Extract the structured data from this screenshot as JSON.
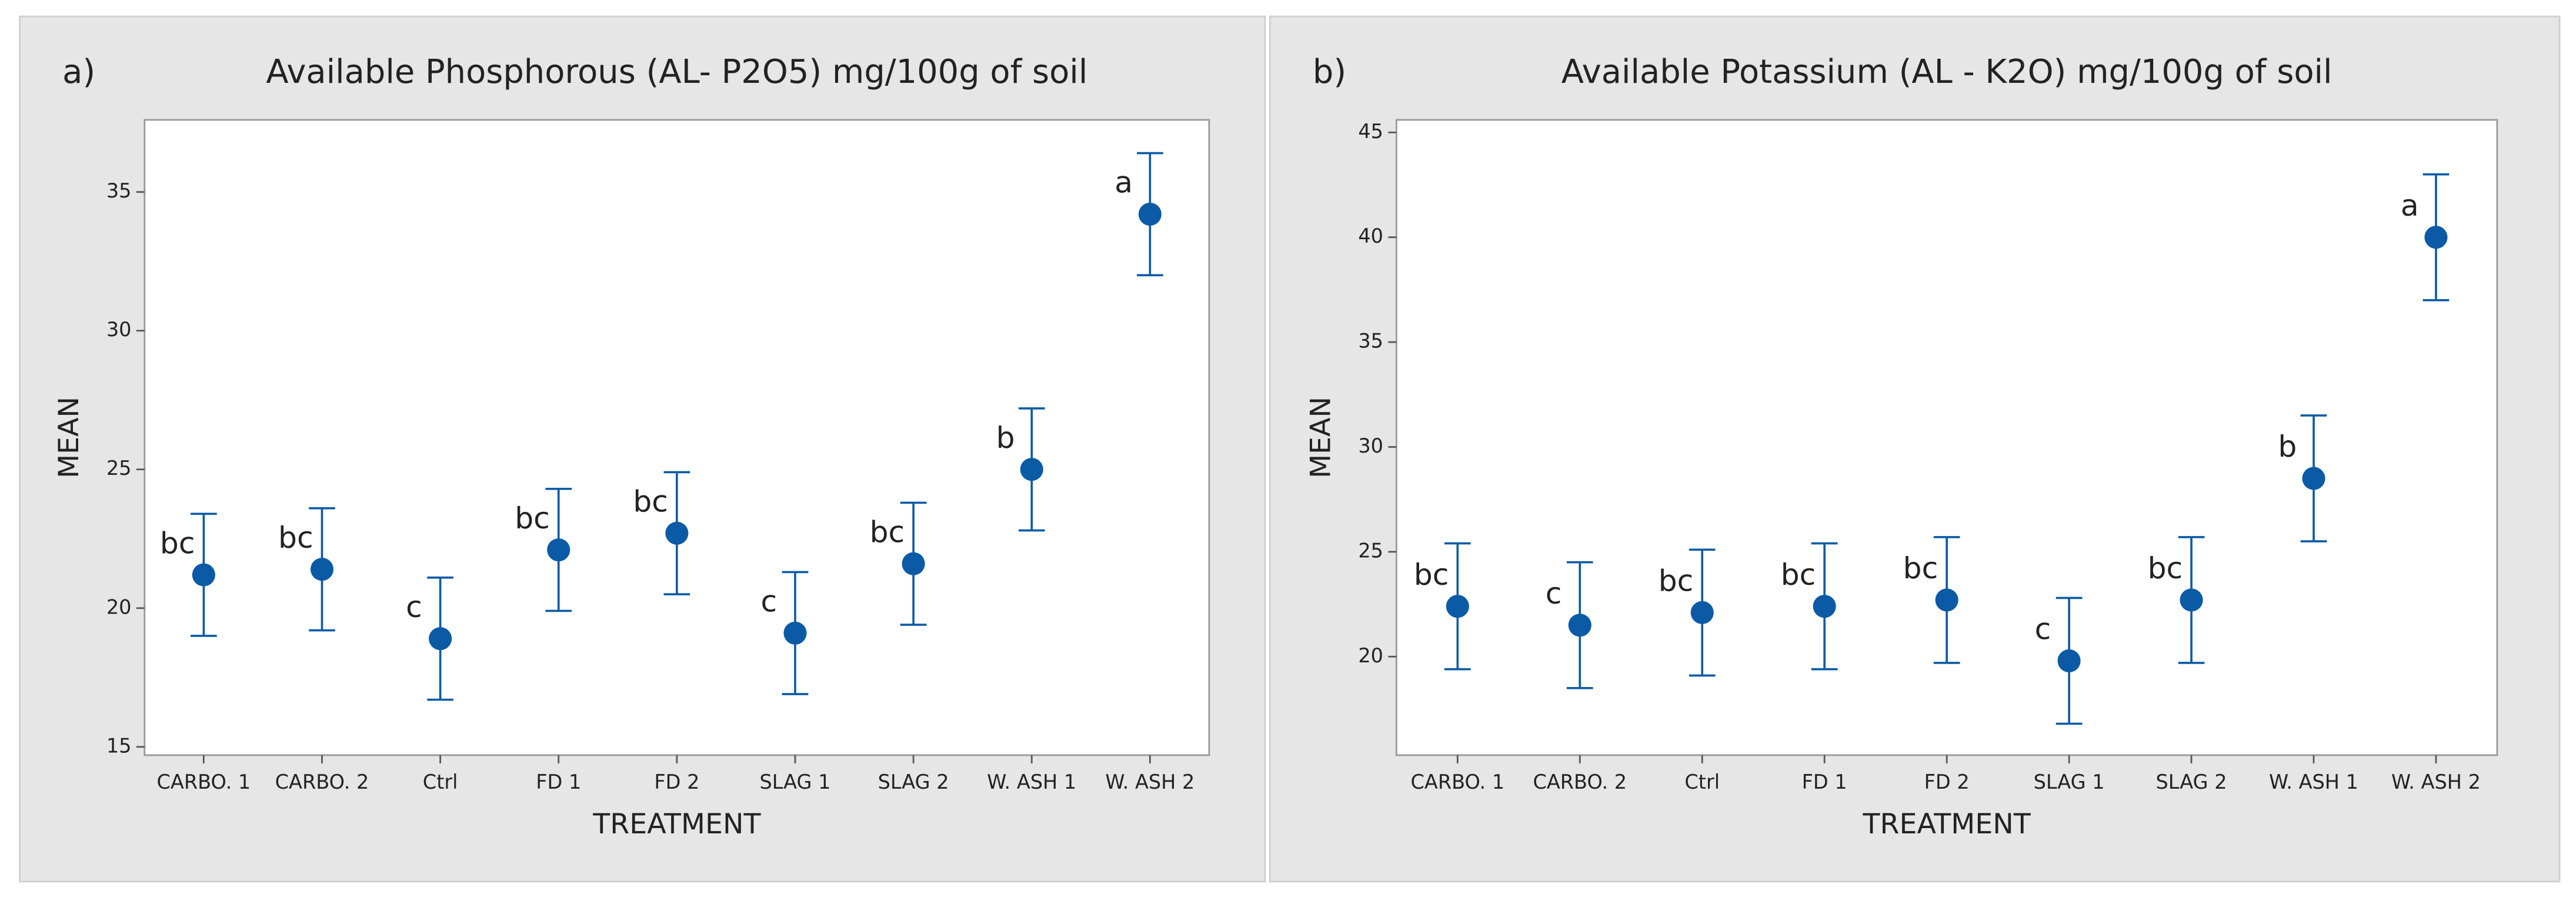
{
  "chart_data": [
    {
      "type": "errorbar",
      "panel_label": "a)",
      "title": "Available Phosphorous (AL- P2O5) mg/100g of soil",
      "x_label": "TREATMENT",
      "y_label": "MEAN",
      "categories": [
        "CARBO. 1",
        "CARBO. 2",
        "Ctrl",
        "FD 1",
        "FD 2",
        "SLAG 1",
        "SLAG 2",
        "W. ASH 1",
        "W. ASH 2"
      ],
      "values": [
        21.2,
        21.4,
        18.9,
        22.1,
        22.7,
        19.1,
        21.6,
        25.0,
        34.2
      ],
      "errors": [
        2.2,
        2.2,
        2.2,
        2.2,
        2.2,
        2.2,
        2.2,
        2.2,
        2.2
      ],
      "group_labels": [
        "bc",
        "bc",
        "c",
        "bc",
        "bc",
        "c",
        "bc",
        "b",
        "a"
      ],
      "color": "#0b5aa6",
      "ylim": [
        14.7,
        37.6
      ],
      "yticks": [
        15,
        20,
        25,
        30,
        35
      ]
    },
    {
      "type": "errorbar",
      "panel_label": "b)",
      "title": "Available Potassium (AL - K2O) mg/100g of soil",
      "x_label": "TREATMENT",
      "y_label": "MEAN",
      "categories": [
        "CARBO. 1",
        "CARBO. 2",
        "Ctrl",
        "FD 1",
        "FD 2",
        "SLAG 1",
        "SLAG 2",
        "W. ASH 1",
        "W. ASH 2"
      ],
      "values": [
        22.4,
        21.5,
        22.1,
        22.4,
        22.7,
        19.8,
        22.7,
        28.5,
        40.0
      ],
      "errors": [
        3.0,
        3.0,
        3.0,
        3.0,
        3.0,
        3.0,
        3.0,
        3.0,
        3.0
      ],
      "group_labels": [
        "bc",
        "c",
        "bc",
        "bc",
        "bc",
        "c",
        "bc",
        "b",
        "a"
      ],
      "color": "#0b5aa6",
      "ylim": [
        15.3,
        45.6
      ],
      "yticks": [
        20,
        25,
        30,
        35,
        40,
        45
      ]
    }
  ]
}
